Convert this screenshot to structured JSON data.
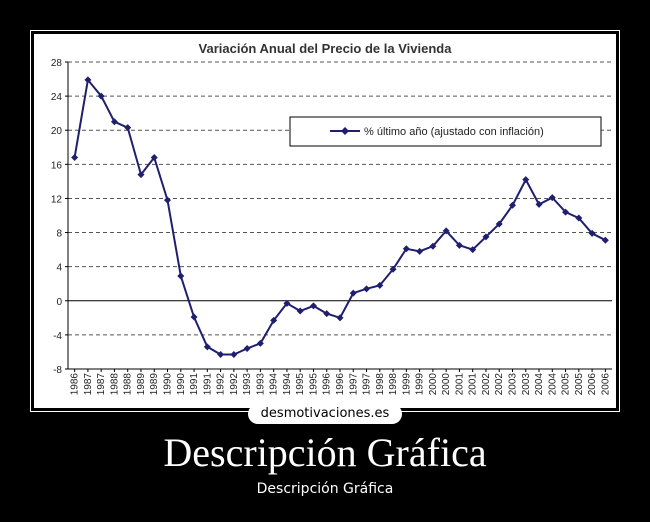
{
  "chart_data": {
    "type": "line",
    "title": "Variación Anual del Precio de la Vivienda",
    "xlabel": "",
    "ylabel": "",
    "ylim": [
      -8,
      28
    ],
    "yticks": [
      28,
      24,
      20,
      16,
      12,
      8,
      4,
      0,
      -4,
      -8
    ],
    "grid": true,
    "legend_position": "top-right",
    "x": [
      "1986",
      "1987",
      "1987",
      "1988",
      "1988",
      "1989",
      "1989",
      "1990",
      "1990",
      "1991",
      "1991",
      "1992",
      "1992",
      "1993",
      "1993",
      "1994",
      "1994",
      "1995",
      "1995",
      "1996",
      "1996",
      "1997",
      "1997",
      "1998",
      "1998",
      "1999",
      "1999",
      "2000",
      "2000",
      "2001",
      "2001",
      "2002",
      "2002",
      "2003",
      "2003",
      "2004",
      "2004",
      "2005",
      "2005",
      "2006",
      "2006"
    ],
    "series": [
      {
        "name": "% último año (ajustado con inflación)",
        "color": "#1f1f6e",
        "values": [
          16.8,
          25.9,
          24.0,
          21.0,
          20.3,
          14.8,
          16.8,
          11.8,
          2.9,
          -1.9,
          -5.4,
          -6.3,
          -6.3,
          -5.6,
          -5.0,
          -2.3,
          -0.3,
          -1.2,
          -0.6,
          -1.5,
          -2.0,
          0.9,
          1.4,
          1.8,
          3.7,
          6.1,
          5.8,
          6.4,
          8.2,
          6.5,
          6.0,
          7.5,
          9.0,
          11.2,
          14.2,
          11.3,
          12.1,
          10.4,
          9.7,
          7.9,
          7.1
        ]
      }
    ]
  },
  "watermark": "desmotivaciones.es",
  "caption": {
    "title": "Descripción Gráfica",
    "subtitle": "Descripción Gráfica"
  }
}
